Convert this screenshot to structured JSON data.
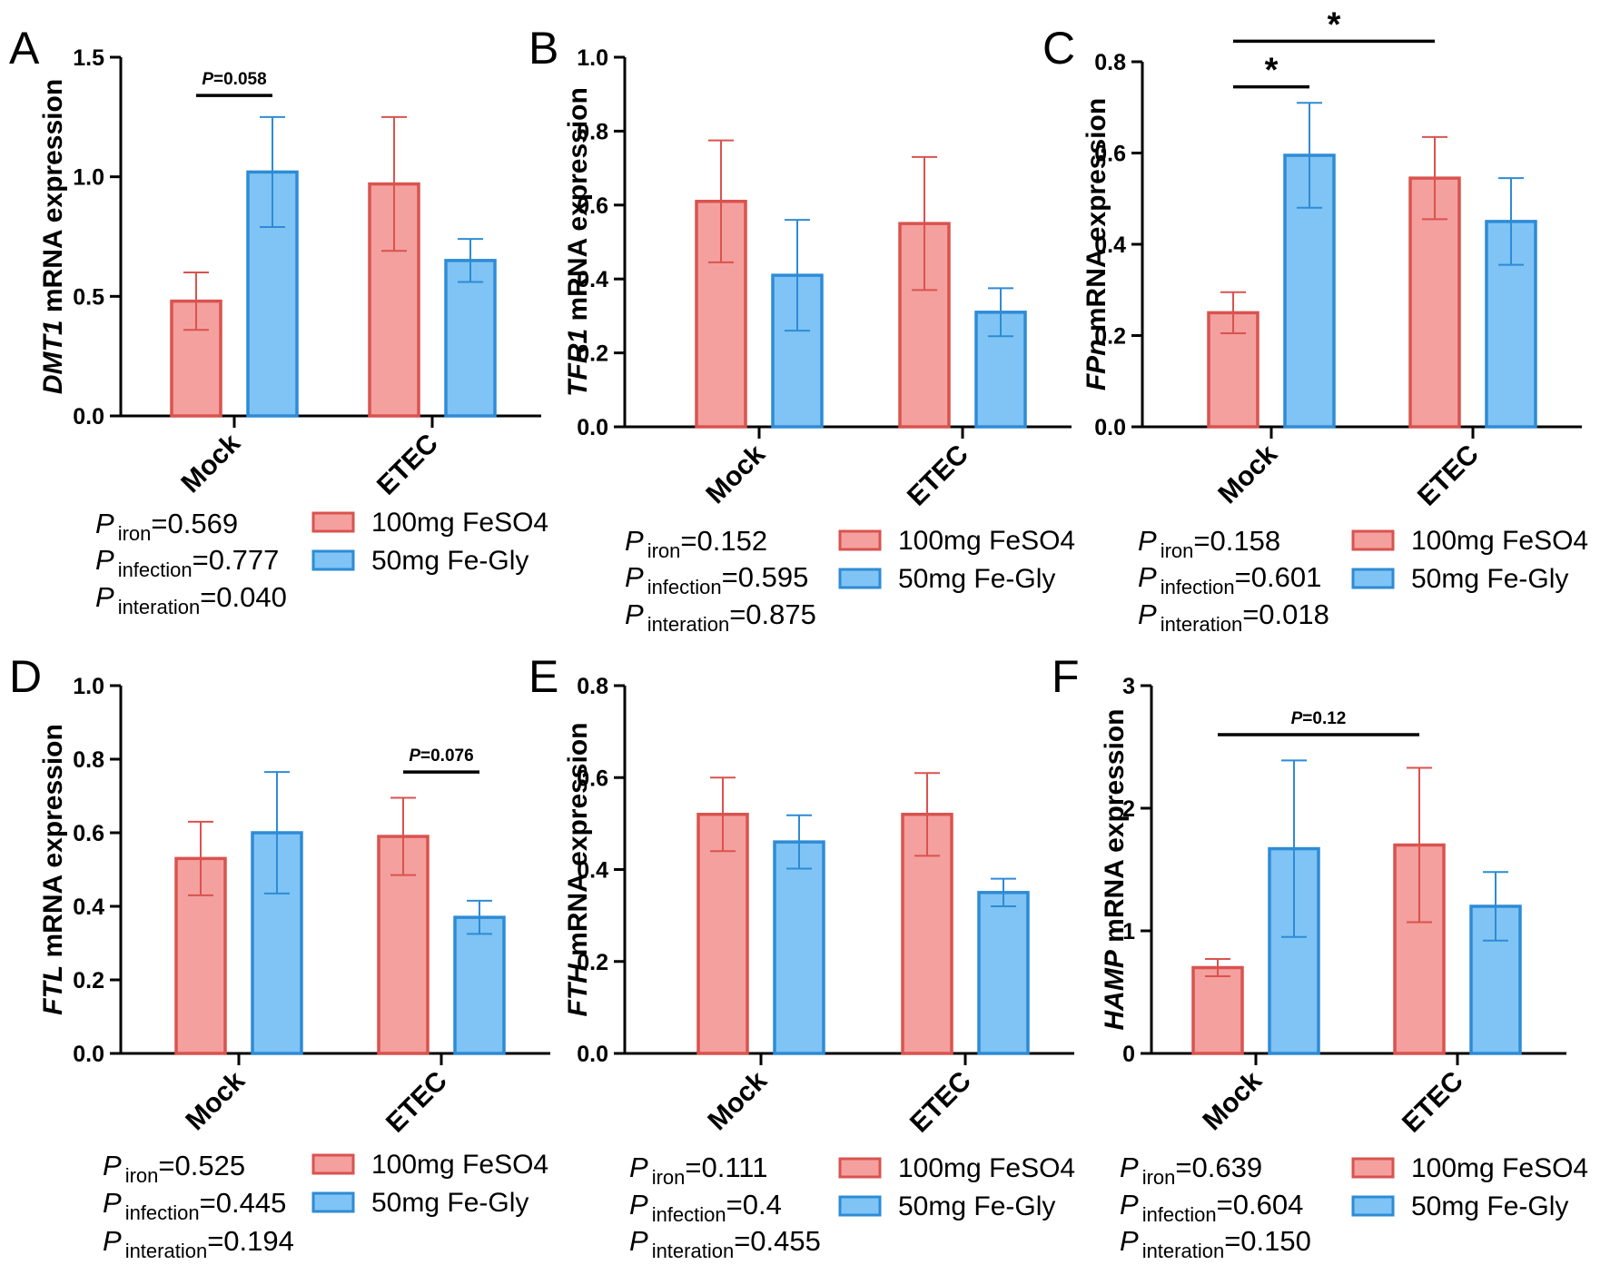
{
  "colors": {
    "red_fill": "#f4a09e",
    "red_stroke": "#d9534f",
    "blue_fill": "#7fc4f4",
    "blue_stroke": "#2e8bd6",
    "axis": "#000000"
  },
  "legend": {
    "series": [
      "100mg FeSO4",
      "50mg Fe-Gly"
    ]
  },
  "stats_labels": {
    "p": "P",
    "iron": "iron",
    "infection": "infection",
    "interaction": "interation"
  },
  "chart_data": [
    {
      "panel": "A",
      "type": "bar",
      "ylabel_gene": "DMT1",
      "ylabel_rest": " mRNA expression",
      "ylim": [
        0,
        1.5
      ],
      "yticks": [
        "0.0",
        "0.5",
        "1.0",
        "1.5"
      ],
      "ytick_values": [
        0,
        0.5,
        1.0,
        1.5
      ],
      "categories": [
        "Mock",
        "ETEC"
      ],
      "series": [
        {
          "name": "100mg FeSO4",
          "values": [
            0.48,
            0.97
          ],
          "errors": [
            0.12,
            0.28
          ]
        },
        {
          "name": "50mg Fe-Gly",
          "values": [
            1.02,
            0.65
          ],
          "errors": [
            0.23,
            0.09
          ]
        }
      ],
      "annotations": [
        {
          "text": "=0.058",
          "italic_prefix": "P",
          "from": [
            0,
            0
          ],
          "to": [
            0,
            1
          ],
          "y_value": 1.34
        }
      ],
      "stats": {
        "iron": "=0.569",
        "infection": "=0.777",
        "interaction": "=0.040"
      }
    },
    {
      "panel": "B",
      "type": "bar",
      "ylabel_gene": "TFR1",
      "ylabel_rest": " mRNA expression",
      "ylim": [
        0,
        1.0
      ],
      "yticks": [
        "0.0",
        "0.2",
        "0.4",
        "0.6",
        "0.8",
        "1.0"
      ],
      "ytick_values": [
        0,
        0.2,
        0.4,
        0.6,
        0.8,
        1.0
      ],
      "categories": [
        "Mock",
        "ETEC"
      ],
      "series": [
        {
          "name": "100mg FeSO4",
          "values": [
            0.61,
            0.55
          ],
          "errors": [
            0.165,
            0.18
          ]
        },
        {
          "name": "50mg Fe-Gly",
          "values": [
            0.41,
            0.31
          ],
          "errors": [
            0.15,
            0.065
          ]
        }
      ],
      "annotations": [],
      "stats": {
        "iron": "=0.152",
        "infection": "=0.595",
        "interaction": "=0.875"
      }
    },
    {
      "panel": "C",
      "type": "bar",
      "ylabel_gene": "FPn",
      "ylabel_rest": " mRNA expression",
      "ylim": [
        0,
        0.8
      ],
      "yticks": [
        "0.0",
        "0.2",
        "0.4",
        "0.6",
        "0.8"
      ],
      "ytick_values": [
        0,
        0.2,
        0.4,
        0.6,
        0.8
      ],
      "categories": [
        "Mock",
        "ETEC"
      ],
      "series": [
        {
          "name": "100mg FeSO4",
          "values": [
            0.25,
            0.545
          ],
          "errors": [
            0.045,
            0.09
          ]
        },
        {
          "name": "50mg Fe-Gly",
          "values": [
            0.595,
            0.45
          ],
          "errors": [
            0.115,
            0.095
          ]
        }
      ],
      "annotations": [
        {
          "text": "*",
          "italic_prefix": "",
          "from": [
            0,
            0
          ],
          "to": [
            0,
            1
          ],
          "y_value": 0.745
        },
        {
          "text": "*",
          "italic_prefix": "",
          "from": [
            0,
            0
          ],
          "to": [
            1,
            0
          ],
          "y_value": 0.845
        }
      ],
      "stats": {
        "iron": "=0.158",
        "infection": "=0.601",
        "interaction": "=0.018"
      }
    },
    {
      "panel": "D",
      "type": "bar",
      "ylabel_gene": "FTL",
      "ylabel_rest": " mRNA expression",
      "ylim": [
        0,
        1.0
      ],
      "yticks": [
        "0.0",
        "0.2",
        "0.4",
        "0.6",
        "0.8",
        "1.0"
      ],
      "ytick_values": [
        0,
        0.2,
        0.4,
        0.6,
        0.8,
        1.0
      ],
      "categories": [
        "Mock",
        "ETEC"
      ],
      "series": [
        {
          "name": "100mg FeSO4",
          "values": [
            0.53,
            0.59
          ],
          "errors": [
            0.1,
            0.105
          ]
        },
        {
          "name": "50mg Fe-Gly",
          "values": [
            0.6,
            0.37
          ],
          "errors": [
            0.165,
            0.045
          ]
        }
      ],
      "annotations": [
        {
          "text": "=0.076",
          "italic_prefix": "P",
          "from": [
            1,
            0
          ],
          "to": [
            1,
            1
          ],
          "y_value": 0.765
        }
      ],
      "stats": {
        "iron": "=0.525",
        "infection": "=0.445",
        "interaction": "=0.194"
      }
    },
    {
      "panel": "E",
      "type": "bar",
      "ylabel_gene": "FTH",
      "ylabel_rest": " mRNA expression",
      "ylim": [
        0,
        0.8
      ],
      "yticks": [
        "0.0",
        "0.2",
        "0.4",
        "0.6",
        "0.8"
      ],
      "ytick_values": [
        0,
        0.2,
        0.4,
        0.6,
        0.8
      ],
      "categories": [
        "Mock",
        "ETEC"
      ],
      "series": [
        {
          "name": "100mg FeSO4",
          "values": [
            0.52,
            0.52
          ],
          "errors": [
            0.08,
            0.09
          ]
        },
        {
          "name": "50mg Fe-Gly",
          "values": [
            0.46,
            0.35
          ],
          "errors": [
            0.058,
            0.03
          ]
        }
      ],
      "annotations": [],
      "stats": {
        "iron": "=0.111",
        "infection": "=0.4",
        "interaction": "=0.455"
      }
    },
    {
      "panel": "F",
      "type": "bar",
      "ylabel_gene": "HAMP",
      "ylabel_rest": " mRNA expression",
      "ylim": [
        0,
        3
      ],
      "yticks": [
        "0",
        "1",
        "2",
        "3"
      ],
      "ytick_values": [
        0,
        1,
        2,
        3
      ],
      "categories": [
        "Mock",
        "ETEC"
      ],
      "series": [
        {
          "name": "100mg FeSO4",
          "values": [
            0.7,
            1.7
          ],
          "errors": [
            0.07,
            0.63
          ]
        },
        {
          "name": "50mg Fe-Gly",
          "values": [
            1.67,
            1.2
          ],
          "errors": [
            0.72,
            0.28
          ]
        }
      ],
      "annotations": [
        {
          "text": "=0.12",
          "italic_prefix": "P",
          "from": [
            0,
            0
          ],
          "to": [
            1,
            0
          ],
          "y_value": 2.6
        }
      ],
      "stats": {
        "iron": "=0.639",
        "infection": "=0.604",
        "interaction": "=0.150"
      }
    }
  ]
}
